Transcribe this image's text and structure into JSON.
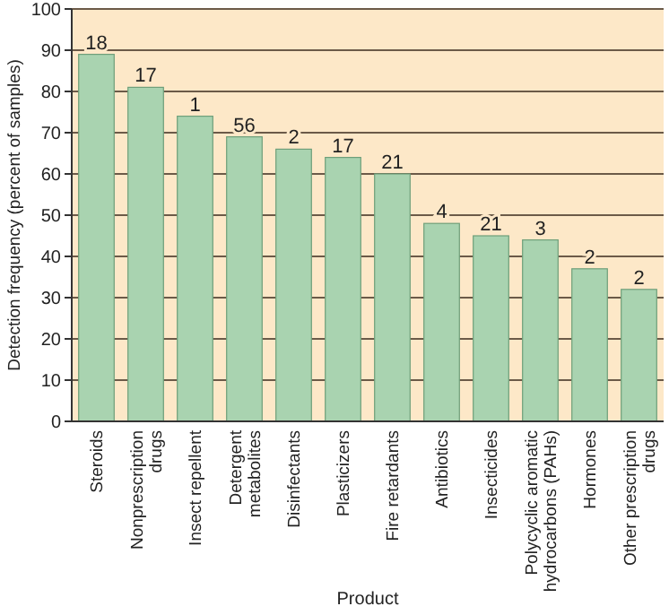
{
  "chart_data": {
    "type": "bar",
    "xlabel": "Product",
    "ylabel": "Detection frequency (percent of samples)",
    "categories": [
      "Steroids",
      "Nonprescription drugs",
      "Insect repellent",
      "Detergent metabolites",
      "Disinfectants",
      "Plasticizers",
      "Fire retardants",
      "Antibiotics",
      "Insecticides",
      "Polycyclic aromatic hydrocarbons (PAHs)",
      "Hormones",
      "Other prescription drugs"
    ],
    "values": [
      89,
      81,
      74,
      69,
      66,
      64,
      60,
      48,
      45,
      44,
      37,
      32
    ],
    "annotations": [
      {
        "text": "18",
        "x": "Steroids",
        "y": 89
      },
      {
        "text": "17",
        "x": "Nonprescription drugs",
        "y": 81
      },
      {
        "text": "1",
        "x": "Insect repellent",
        "y": 74
      },
      {
        "text": "56",
        "x": "Detergent metabolites",
        "y": 69
      },
      {
        "text": "2",
        "x": "Disinfectants",
        "y": 66
      },
      {
        "text": "17",
        "x": "Plasticizers",
        "y": 64
      },
      {
        "text": "21",
        "x": "Fire retardants",
        "y": 60
      },
      {
        "text": "4",
        "x": "Antibiotics",
        "y": 48
      },
      {
        "text": "21",
        "x": "Insecticides",
        "y": 45
      },
      {
        "text": "3",
        "x": "Polycyclic aromatic hydrocarbons (PAHs)",
        "y": 44
      },
      {
        "text": "2",
        "x": "Hormones",
        "y": 37
      },
      {
        "text": "2",
        "x": "Other prescription drugs",
        "y": 32
      }
    ],
    "color": "#a9d3b0",
    "ylim": [
      0,
      100
    ],
    "yticks": [
      0,
      10,
      20,
      30,
      40,
      50,
      60,
      70,
      80,
      90,
      100
    ],
    "grid": "y"
  }
}
